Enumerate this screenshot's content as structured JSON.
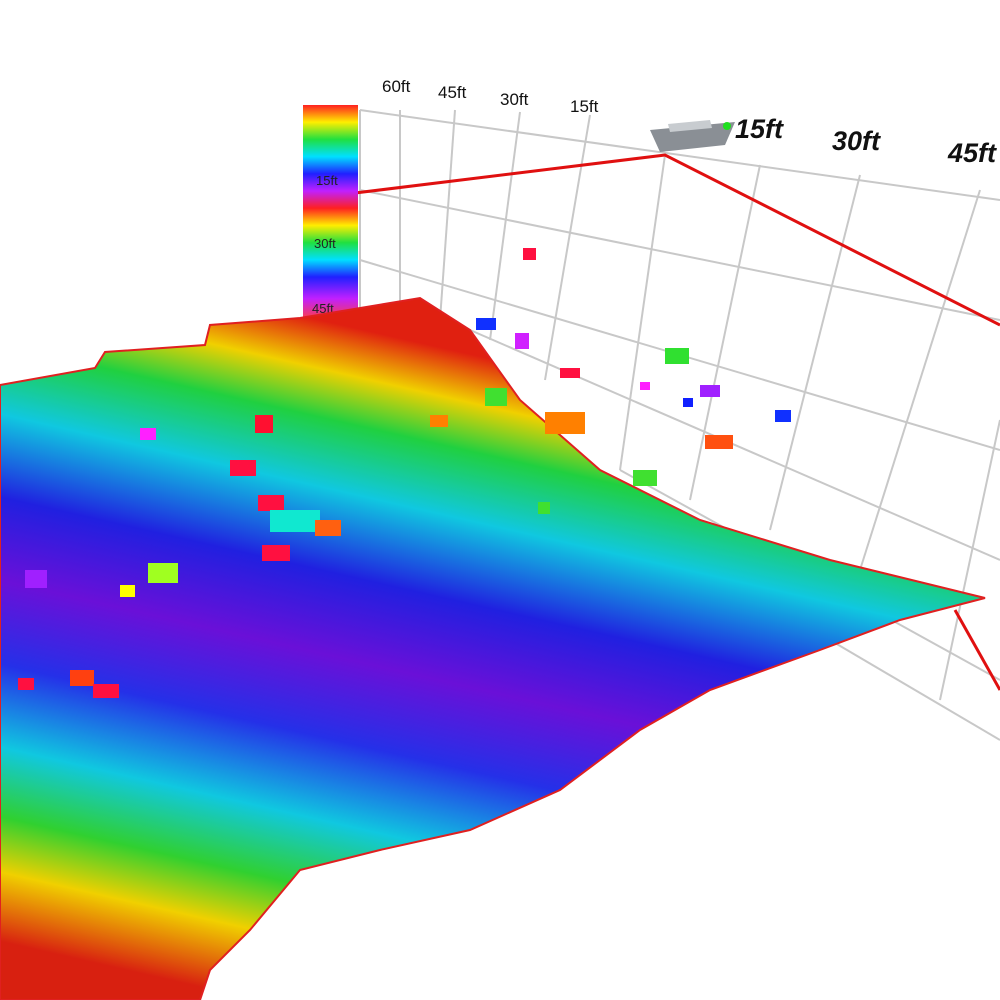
{
  "depth_scale": {
    "labels": [
      "15ft",
      "30ft",
      "45ft"
    ]
  },
  "port_axis": {
    "labels": [
      "60ft",
      "45ft",
      "30ft",
      "15ft"
    ]
  },
  "starboard_axis": {
    "labels": [
      "15ft",
      "30ft",
      "45ft"
    ]
  }
}
